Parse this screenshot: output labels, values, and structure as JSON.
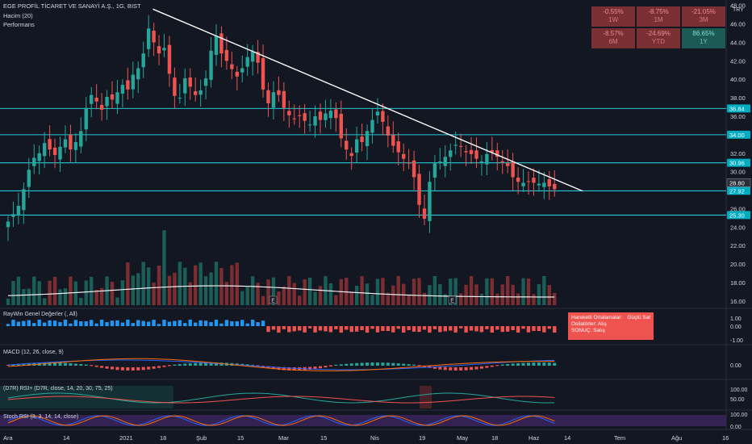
{
  "header": {
    "symbol": "EGE PROFİL TİCARET VE SANAYİ A.Ş., 1G, BIST",
    "volume_label": "Hacim (20)",
    "perf_label": "Performans",
    "currency": "TRY"
  },
  "performance": [
    {
      "value": "-0.55%",
      "label": "1W",
      "color": "#7a2f33"
    },
    {
      "value": "-8.75%",
      "label": "1M",
      "color": "#7a2f33"
    },
    {
      "value": "-21.05%",
      "label": "3M",
      "color": "#7a2f33"
    },
    {
      "value": "-8.57%",
      "label": "6M",
      "color": "#7a2f33"
    },
    {
      "value": "-24.69%",
      "label": "YTD",
      "color": "#7a2f33"
    },
    {
      "value": "86.65%",
      "label": "1Y",
      "color": "#1c5a55"
    }
  ],
  "indicators": {
    "raywin": "RayWin Genel Değerler (, All)",
    "macd": "MACD (12, 26, close, 9)",
    "d7r": "(D7R) RSI+ (D7R, close, 14, 20, 30, 75, 25)",
    "stoch": "Stoch RSI (3, 3, 14, 14, close)"
  },
  "signal_box": {
    "line1_label": "Hareketli Ortalamalar:",
    "line1_value": "Güçlü Sat",
    "line2": "Osilatörler: Alış",
    "line3_label": "SONUÇ:",
    "line3_value": "Satış"
  },
  "chart_data": {
    "type": "candlestick",
    "price_axis": {
      "ticks": [
        16.0,
        18.0,
        20.0,
        22.0,
        24.0,
        26.0,
        28.0,
        30.0,
        32.0,
        34.0,
        36.0,
        38.0,
        40.0,
        42.0,
        44.0,
        46.0,
        48.0
      ],
      "ylim": [
        15.5,
        48.5
      ]
    },
    "price_levels": [
      36.84,
      34.0,
      30.96,
      27.92,
      25.3
    ],
    "last_price": 28.8,
    "trendline": {
      "start": {
        "date": "2021-01-18",
        "price": 47.6
      },
      "end": {
        "date": "2021-06-14",
        "price": 27.9
      }
    },
    "x_ticks": [
      "Ara",
      "14",
      "2021",
      "18",
      "Şub",
      "15",
      "Mar",
      "15",
      "Nis",
      "19",
      "May",
      "18",
      "Haz",
      "14",
      "Tem",
      "Ağu",
      "16"
    ],
    "candles_close_estimate": [
      24.6,
      25.4,
      26.3,
      28.1,
      30.2,
      31.5,
      32.0,
      33.1,
      32.4,
      31.8,
      32.7,
      33.5,
      32.4,
      33.2,
      34.4,
      36.9,
      38.3,
      37.6,
      36.7,
      38.1,
      37.8,
      38.6,
      39.4,
      38.9,
      40.5,
      41.2,
      42.8,
      45.5,
      44.0,
      42.8,
      43.4,
      40.6,
      38.2,
      38.0,
      40.1,
      39.2,
      38.3,
      38.8,
      40.1,
      43.1,
      44.7,
      42.8,
      42.0,
      41.1,
      40.3,
      41.2,
      42.4,
      43.0,
      41.8,
      38.9,
      37.4,
      38.6,
      38.3,
      36.9,
      36.1,
      35.7,
      36.1,
      35.5,
      35.1,
      36.0,
      35.6,
      36.3,
      36.6,
      35.8,
      33.6,
      32.4,
      31.7,
      33.5,
      33.2,
      34.4,
      35.6,
      36.5,
      35.4,
      33.9,
      32.8,
      32.1,
      31.4,
      30.9,
      29.4,
      26.4,
      24.9,
      28.9,
      30.9,
      31.1,
      31.6,
      32.3,
      32.9,
      32.7,
      32.1,
      31.9,
      31.4,
      31.1,
      31.9,
      32.1,
      31.6,
      31.0,
      30.6,
      29.4,
      28.9,
      28.8,
      28.9,
      28.8,
      28.7,
      28.8,
      28.4,
      28.1
    ],
    "indicator_axes": {
      "raywin": [
        1.0,
        0.0,
        -1.0
      ],
      "macd": [
        0.0
      ],
      "d7r": [
        100.0,
        50.0
      ],
      "stoch": [
        100.0,
        0.0
      ]
    }
  }
}
